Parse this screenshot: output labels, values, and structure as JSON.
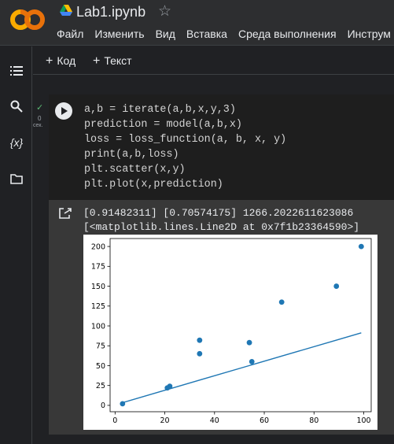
{
  "header": {
    "logo": "colab-logo",
    "drive_icon": "google-drive-icon",
    "title": "Lab1.ipynb",
    "star_icon": "star-outline-icon",
    "menu": [
      "Файл",
      "Изменить",
      "Вид",
      "Вставка",
      "Среда выполнения",
      "Инструм"
    ]
  },
  "rail": {
    "icons": [
      "table-of-contents-icon",
      "search-icon",
      "variables-icon",
      "folder-icon"
    ],
    "variables_glyph": "{x}"
  },
  "toolbar": {
    "add_code": "Код",
    "add_text": "Текст"
  },
  "cell": {
    "status_icon": "check-icon",
    "exec_count": "0",
    "exec_unit": "сек.",
    "code_lines": [
      "a,b = iterate(a,b,x,y,3)",
      "prediction = model(a,b,x)",
      "loss = loss_function(a, b, x, y)",
      "print(a,b,loss)",
      "plt.scatter(x,y)",
      "plt.plot(x,prediction)"
    ]
  },
  "output": {
    "icon": "output-redirect-icon",
    "lines": [
      "[0.91482311] [0.70574175] 1266.2022611623086",
      "[<matplotlib.lines.Line2D at 0x7f1b23364590>]"
    ]
  },
  "chart_data": {
    "type": "scatter",
    "title": "",
    "xlabel": "",
    "ylabel": "",
    "xlim": [
      -2,
      103
    ],
    "ylim": [
      -8,
      210
    ],
    "xticks": [
      0,
      20,
      40,
      60,
      80,
      100
    ],
    "yticks": [
      0,
      25,
      50,
      75,
      100,
      125,
      150,
      175,
      200
    ],
    "grid": false,
    "colors": {
      "series": "#1f77b4"
    },
    "scatter_points": [
      {
        "x": 3,
        "y": 2
      },
      {
        "x": 21,
        "y": 22
      },
      {
        "x": 22,
        "y": 24
      },
      {
        "x": 34,
        "y": 82
      },
      {
        "x": 34,
        "y": 65
      },
      {
        "x": 54,
        "y": 79
      },
      {
        "x": 55,
        "y": 55
      },
      {
        "x": 67,
        "y": 130
      },
      {
        "x": 89,
        "y": 150
      },
      {
        "x": 99,
        "y": 200
      }
    ],
    "line_points": [
      {
        "x": 3,
        "y": 3.4
      },
      {
        "x": 21,
        "y": 19.9
      },
      {
        "x": 22,
        "y": 20.8
      },
      {
        "x": 34,
        "y": 31.8
      },
      {
        "x": 54,
        "y": 50.1
      },
      {
        "x": 55,
        "y": 51.0
      },
      {
        "x": 67,
        "y": 62.0
      },
      {
        "x": 89,
        "y": 82.1
      },
      {
        "x": 99,
        "y": 91.3
      }
    ]
  }
}
